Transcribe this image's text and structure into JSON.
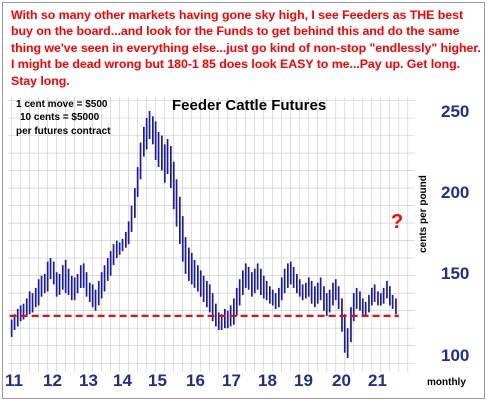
{
  "commentary": "With so many other markets having gone sky high, I see Feeders as THE best buy on the board...and look for the Funds to get behind this and do the same thing we've seen in everything else...just go kind of non-stop \"endlessly\" higher. I might be dead wrong but 180-1 85 does look EASY to me...Pay up. Get long. Stay long.",
  "notes": {
    "line1": "1 cent move = $500",
    "line2": "10 cents = $5000",
    "line3": "per futures contract"
  },
  "question_mark": "?",
  "chart_data": {
    "type": "bar",
    "title": "Feeder Cattle Futures",
    "xlabel": "monthly",
    "ylabel": "cents per pound",
    "x_ticks": [
      "11",
      "12",
      "13",
      "14",
      "15",
      "16",
      "17",
      "18",
      "19",
      "20",
      "21"
    ],
    "y_ticks": [
      100,
      150,
      200,
      250
    ],
    "xlim": [
      2010.9,
      2022.2
    ],
    "ylim": [
      95,
      252
    ],
    "grid": true,
    "support_level": 127,
    "colors": {
      "bars": "#1a1aa0",
      "support_line": "#e01010",
      "grid": "#c8c8c8",
      "axis_ticks": "#1f2f8a",
      "commentary": "#ff0000"
    },
    "bar_width_years": 0.0833,
    "bars": [
      {
        "x": 2011.0,
        "high": 125,
        "low": 115
      },
      {
        "x": 2011.08,
        "high": 128,
        "low": 119
      },
      {
        "x": 2011.17,
        "high": 131,
        "low": 121
      },
      {
        "x": 2011.25,
        "high": 133,
        "low": 124
      },
      {
        "x": 2011.33,
        "high": 134,
        "low": 125
      },
      {
        "x": 2011.42,
        "high": 137,
        "low": 127
      },
      {
        "x": 2011.5,
        "high": 141,
        "low": 128
      },
      {
        "x": 2011.58,
        "high": 140,
        "low": 129
      },
      {
        "x": 2011.67,
        "high": 143,
        "low": 132
      },
      {
        "x": 2011.75,
        "high": 148,
        "low": 133
      },
      {
        "x": 2011.83,
        "high": 150,
        "low": 138
      },
      {
        "x": 2011.92,
        "high": 151,
        "low": 140
      },
      {
        "x": 2012.0,
        "high": 158,
        "low": 141
      },
      {
        "x": 2012.08,
        "high": 160,
        "low": 148
      },
      {
        "x": 2012.17,
        "high": 158,
        "low": 145
      },
      {
        "x": 2012.25,
        "high": 152,
        "low": 138
      },
      {
        "x": 2012.33,
        "high": 151,
        "low": 139
      },
      {
        "x": 2012.42,
        "high": 156,
        "low": 142
      },
      {
        "x": 2012.5,
        "high": 159,
        "low": 140
      },
      {
        "x": 2012.58,
        "high": 154,
        "low": 139
      },
      {
        "x": 2012.67,
        "high": 150,
        "low": 136
      },
      {
        "x": 2012.75,
        "high": 149,
        "low": 136
      },
      {
        "x": 2012.83,
        "high": 151,
        "low": 140
      },
      {
        "x": 2012.92,
        "high": 156,
        "low": 143
      },
      {
        "x": 2013.0,
        "high": 157,
        "low": 143
      },
      {
        "x": 2013.08,
        "high": 152,
        "low": 138
      },
      {
        "x": 2013.17,
        "high": 146,
        "low": 135
      },
      {
        "x": 2013.25,
        "high": 145,
        "low": 132
      },
      {
        "x": 2013.33,
        "high": 142,
        "low": 130
      },
      {
        "x": 2013.42,
        "high": 147,
        "low": 133
      },
      {
        "x": 2013.5,
        "high": 152,
        "low": 137
      },
      {
        "x": 2013.58,
        "high": 156,
        "low": 141
      },
      {
        "x": 2013.67,
        "high": 160,
        "low": 147
      },
      {
        "x": 2013.75,
        "high": 164,
        "low": 150
      },
      {
        "x": 2013.83,
        "high": 168,
        "low": 156
      },
      {
        "x": 2013.92,
        "high": 170,
        "low": 160
      },
      {
        "x": 2014.0,
        "high": 169,
        "low": 162
      },
      {
        "x": 2014.08,
        "high": 171,
        "low": 164
      },
      {
        "x": 2014.17,
        "high": 175,
        "low": 166
      },
      {
        "x": 2014.25,
        "high": 181,
        "low": 168
      },
      {
        "x": 2014.33,
        "high": 190,
        "low": 175
      },
      {
        "x": 2014.42,
        "high": 200,
        "low": 183
      },
      {
        "x": 2014.5,
        "high": 212,
        "low": 195
      },
      {
        "x": 2014.58,
        "high": 226,
        "low": 205
      },
      {
        "x": 2014.67,
        "high": 235,
        "low": 218
      },
      {
        "x": 2014.75,
        "high": 240,
        "low": 222
      },
      {
        "x": 2014.83,
        "high": 244,
        "low": 228
      },
      {
        "x": 2014.92,
        "high": 241,
        "low": 225
      },
      {
        "x": 2015.0,
        "high": 238,
        "low": 216
      },
      {
        "x": 2015.08,
        "high": 232,
        "low": 212
      },
      {
        "x": 2015.17,
        "high": 230,
        "low": 210
      },
      {
        "x": 2015.25,
        "high": 225,
        "low": 203
      },
      {
        "x": 2015.33,
        "high": 228,
        "low": 208
      },
      {
        "x": 2015.42,
        "high": 224,
        "low": 200
      },
      {
        "x": 2015.5,
        "high": 215,
        "low": 188
      },
      {
        "x": 2015.58,
        "high": 205,
        "low": 178
      },
      {
        "x": 2015.67,
        "high": 195,
        "low": 168
      },
      {
        "x": 2015.75,
        "high": 184,
        "low": 158
      },
      {
        "x": 2015.83,
        "high": 172,
        "low": 151
      },
      {
        "x": 2015.92,
        "high": 166,
        "low": 147
      },
      {
        "x": 2016.0,
        "high": 163,
        "low": 145
      },
      {
        "x": 2016.08,
        "high": 159,
        "low": 143
      },
      {
        "x": 2016.17,
        "high": 156,
        "low": 141
      },
      {
        "x": 2016.25,
        "high": 153,
        "low": 138
      },
      {
        "x": 2016.33,
        "high": 150,
        "low": 135
      },
      {
        "x": 2016.42,
        "high": 147,
        "low": 132
      },
      {
        "x": 2016.5,
        "high": 145,
        "low": 129
      },
      {
        "x": 2016.58,
        "high": 140,
        "low": 124
      },
      {
        "x": 2016.67,
        "high": 134,
        "low": 121
      },
      {
        "x": 2016.75,
        "high": 129,
        "low": 119
      },
      {
        "x": 2016.83,
        "high": 128,
        "low": 119
      },
      {
        "x": 2016.92,
        "high": 131,
        "low": 120
      },
      {
        "x": 2017.0,
        "high": 130,
        "low": 120
      },
      {
        "x": 2017.08,
        "high": 133,
        "low": 121
      },
      {
        "x": 2017.17,
        "high": 137,
        "low": 122
      },
      {
        "x": 2017.25,
        "high": 143,
        "low": 127
      },
      {
        "x": 2017.33,
        "high": 148,
        "low": 133
      },
      {
        "x": 2017.42,
        "high": 153,
        "low": 139
      },
      {
        "x": 2017.5,
        "high": 157,
        "low": 143
      },
      {
        "x": 2017.58,
        "high": 155,
        "low": 142
      },
      {
        "x": 2017.67,
        "high": 152,
        "low": 138
      },
      {
        "x": 2017.75,
        "high": 154,
        "low": 140
      },
      {
        "x": 2017.83,
        "high": 157,
        "low": 142
      },
      {
        "x": 2017.92,
        "high": 154,
        "low": 139
      },
      {
        "x": 2018.0,
        "high": 150,
        "low": 137
      },
      {
        "x": 2018.08,
        "high": 147,
        "low": 136
      },
      {
        "x": 2018.17,
        "high": 144,
        "low": 134
      },
      {
        "x": 2018.25,
        "high": 142,
        "low": 133
      },
      {
        "x": 2018.33,
        "high": 140,
        "low": 131
      },
      {
        "x": 2018.42,
        "high": 143,
        "low": 132
      },
      {
        "x": 2018.5,
        "high": 149,
        "low": 136
      },
      {
        "x": 2018.58,
        "high": 154,
        "low": 140
      },
      {
        "x": 2018.67,
        "high": 157,
        "low": 143
      },
      {
        "x": 2018.75,
        "high": 158,
        "low": 145
      },
      {
        "x": 2018.83,
        "high": 155,
        "low": 143
      },
      {
        "x": 2018.92,
        "high": 151,
        "low": 140
      },
      {
        "x": 2019.0,
        "high": 148,
        "low": 138
      },
      {
        "x": 2019.08,
        "high": 145,
        "low": 136
      },
      {
        "x": 2019.17,
        "high": 146,
        "low": 137
      },
      {
        "x": 2019.25,
        "high": 149,
        "low": 138
      },
      {
        "x": 2019.33,
        "high": 147,
        "low": 134
      },
      {
        "x": 2019.42,
        "high": 144,
        "low": 132
      },
      {
        "x": 2019.5,
        "high": 146,
        "low": 134
      },
      {
        "x": 2019.58,
        "high": 149,
        "low": 136
      },
      {
        "x": 2019.67,
        "high": 144,
        "low": 130
      },
      {
        "x": 2019.75,
        "high": 140,
        "low": 127
      },
      {
        "x": 2019.83,
        "high": 142,
        "low": 129
      },
      {
        "x": 2019.92,
        "high": 146,
        "low": 133
      },
      {
        "x": 2020.0,
        "high": 148,
        "low": 136
      },
      {
        "x": 2020.08,
        "high": 144,
        "low": 131
      },
      {
        "x": 2020.17,
        "high": 137,
        "low": 118
      },
      {
        "x": 2020.25,
        "high": 128,
        "low": 106
      },
      {
        "x": 2020.33,
        "high": 120,
        "low": 103
      },
      {
        "x": 2020.42,
        "high": 132,
        "low": 112
      },
      {
        "x": 2020.5,
        "high": 140,
        "low": 124
      },
      {
        "x": 2020.58,
        "high": 143,
        "low": 131
      },
      {
        "x": 2020.67,
        "high": 141,
        "low": 130
      },
      {
        "x": 2020.75,
        "high": 137,
        "low": 127
      },
      {
        "x": 2020.83,
        "high": 135,
        "low": 127
      },
      {
        "x": 2020.92,
        "high": 139,
        "low": 129
      },
      {
        "x": 2021.0,
        "high": 143,
        "low": 133
      },
      {
        "x": 2021.08,
        "high": 145,
        "low": 135
      },
      {
        "x": 2021.17,
        "high": 141,
        "low": 133
      },
      {
        "x": 2021.25,
        "high": 140,
        "low": 133
      },
      {
        "x": 2021.33,
        "high": 143,
        "low": 134
      },
      {
        "x": 2021.42,
        "high": 147,
        "low": 137
      },
      {
        "x": 2021.5,
        "high": 144,
        "low": 133
      },
      {
        "x": 2021.58,
        "high": 139,
        "low": 131
      },
      {
        "x": 2021.67,
        "high": 137,
        "low": 128
      }
    ]
  }
}
